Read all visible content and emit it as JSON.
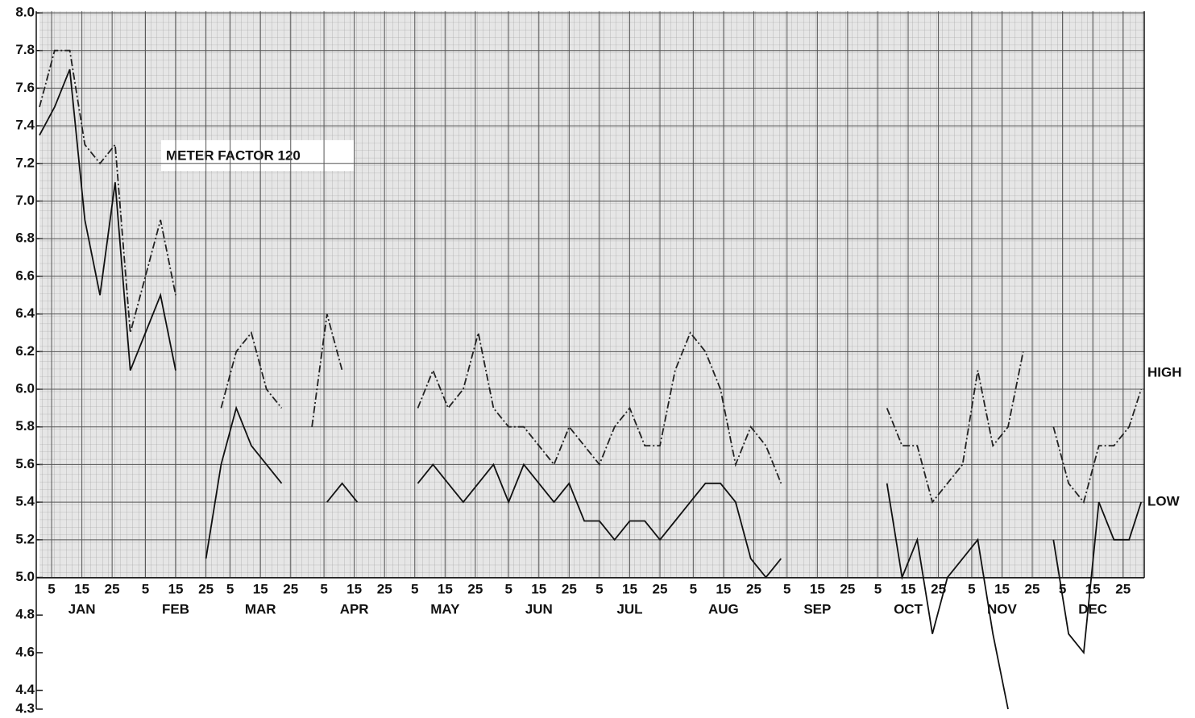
{
  "chart_data": {
    "type": "line",
    "annotation": "METER FACTOR 120",
    "month_labels": [
      "JAN",
      "FEB",
      "MAR",
      "APR",
      "MAY",
      "JUN",
      "JUL",
      "AUG",
      "SEP",
      "OCT",
      "NOV",
      "DEC"
    ],
    "xlim": [
      0,
      365
    ],
    "xticks": [
      {
        "value": 4,
        "label": "5"
      },
      {
        "value": 14,
        "label": "15"
      },
      {
        "value": 24,
        "label": "25"
      },
      {
        "value": 35,
        "label": "5"
      },
      {
        "value": 45,
        "label": "15"
      },
      {
        "value": 55,
        "label": "25"
      },
      {
        "value": 63,
        "label": "5"
      },
      {
        "value": 73,
        "label": "15"
      },
      {
        "value": 83,
        "label": "25"
      },
      {
        "value": 94,
        "label": "5"
      },
      {
        "value": 104,
        "label": "15"
      },
      {
        "value": 114,
        "label": "25"
      },
      {
        "value": 124,
        "label": "5"
      },
      {
        "value": 134,
        "label": "15"
      },
      {
        "value": 144,
        "label": "25"
      },
      {
        "value": 155,
        "label": "5"
      },
      {
        "value": 165,
        "label": "15"
      },
      {
        "value": 175,
        "label": "25"
      },
      {
        "value": 185,
        "label": "5"
      },
      {
        "value": 195,
        "label": "15"
      },
      {
        "value": 205,
        "label": "25"
      },
      {
        "value": 216,
        "label": "5"
      },
      {
        "value": 226,
        "label": "15"
      },
      {
        "value": 236,
        "label": "25"
      },
      {
        "value": 247,
        "label": "5"
      },
      {
        "value": 257,
        "label": "15"
      },
      {
        "value": 267,
        "label": "25"
      },
      {
        "value": 277,
        "label": "5"
      },
      {
        "value": 287,
        "label": "15"
      },
      {
        "value": 297,
        "label": "25"
      },
      {
        "value": 308,
        "label": "5"
      },
      {
        "value": 318,
        "label": "15"
      },
      {
        "value": 328,
        "label": "25"
      },
      {
        "value": 338,
        "label": "5"
      },
      {
        "value": 348,
        "label": "15"
      },
      {
        "value": 358,
        "label": "25"
      }
    ],
    "ylim": [
      4.3,
      8.0
    ],
    "yticks": [
      4.3,
      4.4,
      4.6,
      4.8,
      {
        "value": 5,
        "label": "5.0"
      },
      5.2,
      5.4,
      5.6,
      5.8,
      {
        "value": 6,
        "label": "6.0"
      },
      6.2,
      6.4,
      6.6,
      6.8,
      {
        "value": 7,
        "label": "7.0"
      },
      7.2,
      7.4,
      7.6,
      7.8,
      {
        "value": 8,
        "label": "8.0"
      }
    ],
    "grid": true,
    "x": [
      0,
      5,
      10,
      15,
      20,
      25,
      30,
      35,
      40,
      45,
      50,
      55,
      60,
      65,
      70,
      75,
      80,
      85,
      90,
      95,
      100,
      105,
      110,
      115,
      120,
      125,
      130,
      135,
      140,
      145,
      150,
      155,
      160,
      165,
      170,
      175,
      180,
      185,
      190,
      195,
      200,
      205,
      210,
      215,
      220,
      225,
      230,
      235,
      240,
      245,
      250,
      255,
      260,
      265,
      270,
      275,
      280,
      285,
      290,
      295,
      300,
      305,
      310,
      315,
      320,
      325,
      330,
      335,
      340,
      345,
      350,
      355,
      360,
      364
    ],
    "series": [
      {
        "name": "HIGH",
        "color": "#222222",
        "style": "dashdot",
        "values": [
          7.5,
          7.8,
          7.8,
          7.3,
          7.2,
          7.3,
          6.3,
          6.6,
          6.9,
          6.5,
          null,
          null,
          5.9,
          6.2,
          6.3,
          6.0,
          5.9,
          null,
          5.8,
          6.4,
          6.1,
          null,
          null,
          null,
          null,
          5.9,
          6.1,
          5.9,
          6.0,
          6.3,
          5.9,
          5.8,
          5.8,
          5.7,
          5.6,
          5.8,
          5.7,
          5.6,
          5.8,
          5.9,
          5.7,
          5.7,
          6.1,
          6.3,
          6.2,
          6.0,
          5.6,
          5.8,
          5.7,
          5.5,
          null,
          null,
          null,
          null,
          null,
          null,
          5.9,
          5.7,
          5.7,
          5.4,
          5.5,
          5.6,
          6.1,
          5.7,
          5.8,
          6.2,
          null,
          5.8,
          5.5,
          5.4,
          5.7,
          5.7,
          5.8,
          6.0
        ]
      },
      {
        "name": "LOW",
        "color": "#111111",
        "style": "solid",
        "values": [
          7.35,
          7.5,
          7.7,
          6.9,
          6.5,
          7.1,
          6.1,
          6.3,
          6.5,
          6.1,
          null,
          5.1,
          5.6,
          5.9,
          5.7,
          5.6,
          5.5,
          null,
          null,
          5.4,
          5.5,
          5.4,
          null,
          null,
          null,
          5.5,
          5.6,
          5.5,
          5.4,
          5.5,
          5.6,
          5.4,
          5.6,
          5.5,
          5.4,
          5.5,
          5.3,
          5.3,
          5.2,
          5.3,
          5.3,
          5.2,
          5.3,
          5.4,
          5.5,
          5.5,
          5.4,
          5.1,
          5.0,
          5.1,
          null,
          null,
          null,
          null,
          null,
          null,
          5.5,
          5.0,
          5.2,
          4.7,
          5.0,
          5.1,
          5.2,
          4.7,
          4.3,
          null,
          null,
          5.2,
          4.7,
          4.6,
          5.4,
          5.2,
          5.2,
          5.4
        ]
      }
    ]
  }
}
